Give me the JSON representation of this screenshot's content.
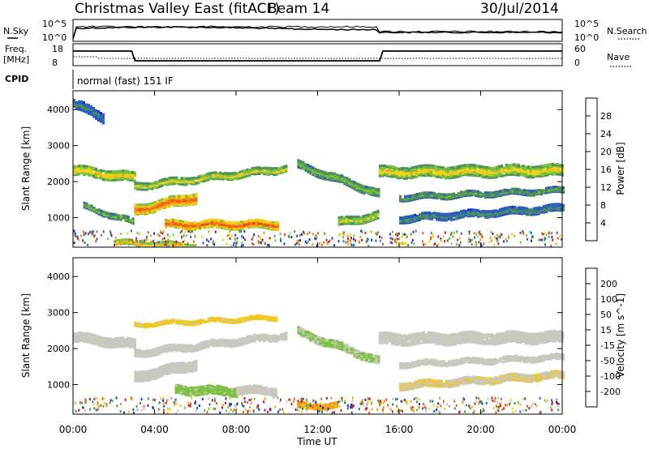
{
  "header": {
    "title": "Christmas Valley East (fitACF)",
    "beam": "Beam 14",
    "date": "30/Jul/2014"
  },
  "top_panels": {
    "nsky_label": "N.Sky",
    "nsky_ticks": [
      "10^5",
      "10^0"
    ],
    "nsearch_label": "N.Search",
    "nsearch_ticks": [
      "10^5",
      "10^0"
    ],
    "freq_label": "Freq.",
    "freq_unit": "[MHz]",
    "freq_ticks": [
      "18",
      "8"
    ],
    "nave_label": "Nave",
    "nave_ticks": [
      "60",
      "0"
    ],
    "cpid_label": "CPID",
    "cpid_value": "normal (fast) 151 IF"
  },
  "chart_data": [
    {
      "type": "heatmap",
      "panel": "power",
      "ylabel": "Slant Range [km]",
      "yticks": [
        "4000",
        "3000",
        "2000",
        "1000"
      ],
      "ylim": [
        180,
        4500
      ],
      "colorbar_label": "Power [dB]",
      "colorbar_ticks": [
        "28",
        "24",
        "20",
        "16",
        "12",
        "8",
        "4"
      ],
      "colorbar_range": [
        0,
        32
      ],
      "colors": [
        "#1432dc",
        "#2a5fbe",
        "#4e8f5a",
        "#7cc040",
        "#f0d21a",
        "#f59a14",
        "#f05a10",
        "#e01010"
      ],
      "bands": [
        {
          "t0": 0.0,
          "t1": 3.0,
          "r0": 2350,
          "r1": 2150,
          "w": 260,
          "p": 20
        },
        {
          "t0": 3.0,
          "t1": 10.5,
          "r0": 1900,
          "r1": 2400,
          "w": 180,
          "p": 18
        },
        {
          "t0": 3.0,
          "t1": 6.0,
          "r0": 1250,
          "r1": 1600,
          "w": 280,
          "p": 26
        },
        {
          "t0": 4.5,
          "t1": 10.0,
          "r0": 850,
          "r1": 850,
          "w": 220,
          "p": 27
        },
        {
          "t0": 0.5,
          "t1": 3.0,
          "r0": 1350,
          "r1": 900,
          "w": 150,
          "p": 14
        },
        {
          "t0": 2.0,
          "t1": 6.0,
          "r0": 350,
          "r1": 250,
          "w": 120,
          "p": 22
        },
        {
          "t0": 11.0,
          "t1": 15.0,
          "r0": 2500,
          "r1": 1700,
          "w": 220,
          "p": 14
        },
        {
          "t0": 13.0,
          "t1": 15.0,
          "r0": 900,
          "r1": 1100,
          "w": 200,
          "p": 18
        },
        {
          "t0": 15.0,
          "t1": 24.0,
          "r0": 2300,
          "r1": 2350,
          "w": 300,
          "p": 19
        },
        {
          "t0": 16.0,
          "t1": 24.0,
          "r0": 1600,
          "r1": 1800,
          "w": 150,
          "p": 12
        },
        {
          "t0": 16.0,
          "t1": 24.0,
          "r0": 1000,
          "r1": 1300,
          "w": 180,
          "p": 10
        },
        {
          "t0": 0.0,
          "t1": 1.5,
          "r0": 4200,
          "r1": 3800,
          "w": 250,
          "p": 9
        }
      ]
    },
    {
      "type": "heatmap",
      "panel": "velocity",
      "ylabel": "Slant Range [km]",
      "yticks": [
        "4000",
        "3000",
        "2000",
        "1000"
      ],
      "ylim": [
        180,
        4500
      ],
      "colorbar_label": "Velocity [m s^-1]",
      "colorbar_ticks": [
        "200",
        "100",
        "50",
        "15",
        "-15",
        "-50",
        "-100",
        "-200"
      ],
      "colorbar_range": [
        -250,
        250
      ],
      "colors": [
        "#e01010",
        "#f05a10",
        "#f59a14",
        "#f0c81e",
        "#c8c8c0",
        "#7cc040",
        "#3e9a48",
        "#2a5fbe",
        "#1432dc"
      ],
      "bands": [
        {
          "t0": 0.0,
          "t1": 3.0,
          "r0": 2350,
          "r1": 2150,
          "w": 260,
          "v": 0
        },
        {
          "t0": 3.0,
          "t1": 10.5,
          "r0": 1900,
          "r1": 2400,
          "w": 180,
          "v": 5
        },
        {
          "t0": 3.0,
          "t1": 6.0,
          "r0": 1250,
          "r1": 1600,
          "w": 280,
          "v": -5
        },
        {
          "t0": 5.0,
          "t1": 8.0,
          "r0": 900,
          "r1": 850,
          "w": 240,
          "v": 40
        },
        {
          "t0": 8.0,
          "t1": 10.0,
          "r0": 900,
          "r1": 850,
          "w": 220,
          "v": 0
        },
        {
          "t0": 11.0,
          "t1": 15.0,
          "r0": 2500,
          "r1": 1700,
          "w": 220,
          "v": 30
        },
        {
          "t0": 11.0,
          "t1": 13.0,
          "r0": 450,
          "r1": 450,
          "w": 150,
          "v": -90
        },
        {
          "t0": 15.0,
          "t1": 24.0,
          "r0": 2300,
          "r1": 2350,
          "w": 300,
          "v": 0
        },
        {
          "t0": 16.0,
          "t1": 24.0,
          "r0": 1600,
          "r1": 1800,
          "w": 150,
          "v": 0
        },
        {
          "t0": 16.0,
          "t1": 24.0,
          "r0": 1000,
          "r1": 1300,
          "w": 180,
          "v": -25
        },
        {
          "t0": 3.0,
          "t1": 10.0,
          "r0": 2700,
          "r1": 2900,
          "w": 100,
          "v": -40
        }
      ]
    }
  ],
  "time_axis": {
    "label": "Time UT",
    "ticks": [
      "00:00",
      "04:00",
      "08:00",
      "12:00",
      "16:00",
      "20:00",
      "00:00"
    ]
  }
}
